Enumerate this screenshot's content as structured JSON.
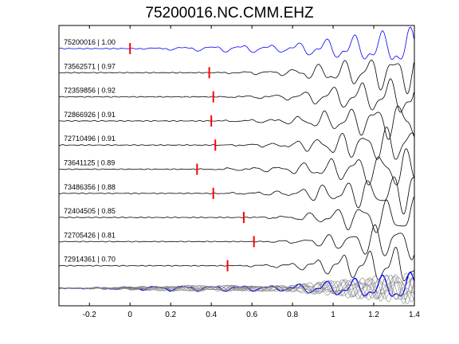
{
  "title": "75200016.NC.CMM.EHZ",
  "chart_data": {
    "type": "line",
    "title": "75200016.NC.CMM.EHZ",
    "xlabel": "",
    "ylabel": "",
    "xlim": [
      -0.35,
      1.4
    ],
    "xticks": [
      -0.2,
      0,
      0.2,
      0.4,
      0.6,
      0.8,
      1,
      1.2,
      1.4
    ],
    "xtick_labels": [
      "-0.2",
      "0",
      "0.2",
      "0.4",
      "0.6",
      "0.8",
      "1",
      "1.2",
      "1.4"
    ],
    "series": [
      {
        "name": "75200016 | 1.00",
        "pick": 0.0,
        "color": "#0000ff"
      },
      {
        "name": "73562571 | 0.97",
        "pick": 0.39,
        "color": "#000000"
      },
      {
        "name": "72359856 | 0.92",
        "pick": 0.41,
        "color": "#000000"
      },
      {
        "name": "72866926 | 0.91",
        "pick": 0.4,
        "color": "#000000"
      },
      {
        "name": "72710496 | 0.91",
        "pick": 0.42,
        "color": "#000000"
      },
      {
        "name": "73641125 | 0.89",
        "pick": 0.33,
        "color": "#000000"
      },
      {
        "name": "73486356 | 0.88",
        "pick": 0.41,
        "color": "#000000"
      },
      {
        "name": "72404505 | 0.85",
        "pick": 0.56,
        "color": "#000000"
      },
      {
        "name": "72705426 | 0.81",
        "pick": 0.61,
        "color": "#000000"
      },
      {
        "name": "72914361 | 0.70",
        "pick": 0.48,
        "color": "#000000"
      }
    ],
    "pick_color": "#ff0000",
    "stack_color": "#808080",
    "grid": false
  }
}
